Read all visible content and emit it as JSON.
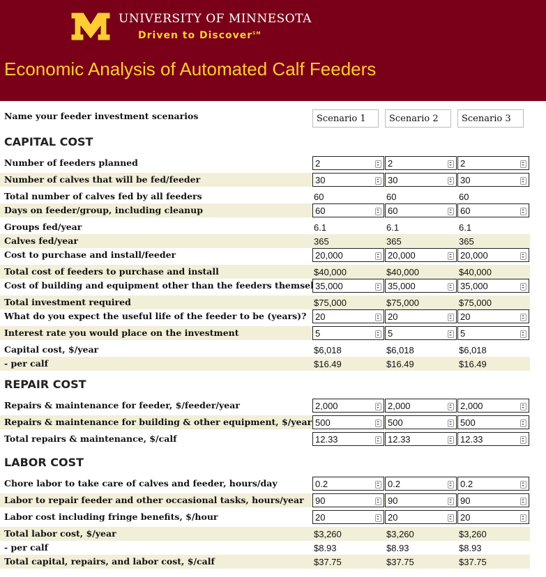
{
  "header": {
    "university": "UNIVERSITY OF MINNESOTA",
    "tagline": "Driven to Discover",
    "tagline_mark": "SM",
    "title": "Economic Analysis of Automated Calf Feeders"
  },
  "scenarios": {
    "label": "Name your feeder investment scenarios",
    "names": [
      "Scenario 1",
      "Scenario 2",
      "Scenario 3"
    ]
  },
  "capital": {
    "heading": "CAPITAL COST",
    "rows": [
      {
        "label": "Number of feeders planned",
        "type": "input",
        "values": [
          "2",
          "2",
          "2"
        ]
      },
      {
        "label": "Number of calves that will be fed/feeder",
        "type": "input",
        "values": [
          "30",
          "30",
          "30"
        ]
      },
      {
        "label": "Total number of calves fed by all feeders",
        "type": "output",
        "values": [
          "60",
          "60",
          "60"
        ]
      },
      {
        "label": "Days on feeder/group, including cleanup",
        "type": "input",
        "values": [
          "60",
          "60",
          "60"
        ]
      },
      {
        "label": "Groups fed/year",
        "type": "output",
        "values": [
          "6.1",
          "6.1",
          "6.1"
        ]
      },
      {
        "label": "Calves fed/year",
        "type": "output",
        "values": [
          "365",
          "365",
          "365"
        ]
      },
      {
        "label": "Cost to purchase and install/feeder",
        "type": "input",
        "values": [
          "20,000",
          "20,000",
          "20,000"
        ]
      },
      {
        "label": "Total cost of feeders to purchase and install",
        "type": "output",
        "values": [
          "$40,000",
          "$40,000",
          "$40,000"
        ]
      },
      {
        "label": "Cost of building and equipment other than the feeders themselves",
        "type": "input",
        "values": [
          "35,000",
          "35,000",
          "35,000"
        ]
      },
      {
        "label": "Total investment required",
        "type": "output",
        "values": [
          "$75,000",
          "$75,000",
          "$75,000"
        ]
      },
      {
        "label": "What do you expect the useful life of the feeder to be (years)?",
        "type": "input",
        "values": [
          "20",
          "20",
          "20"
        ]
      },
      {
        "label": "Interest rate you would place on the investment",
        "type": "input",
        "values": [
          "5",
          "5",
          "5"
        ]
      },
      {
        "label": "Capital cost, $/year",
        "type": "output",
        "values": [
          "$6,018",
          "$6,018",
          "$6,018"
        ]
      },
      {
        "label": "- per calf",
        "type": "output",
        "values": [
          "$16.49",
          "$16.49",
          "$16.49"
        ]
      }
    ]
  },
  "repair": {
    "heading": "REPAIR COST",
    "rows": [
      {
        "label": "Repairs & maintenance for feeder, $/feeder/year",
        "type": "input",
        "values": [
          "2,000",
          "2,000",
          "2,000"
        ]
      },
      {
        "label": "Repairs & maintenance for building & other equipment, $/year",
        "type": "input",
        "values": [
          "500",
          "500",
          "500"
        ]
      },
      {
        "label": "Total repairs & maintenance, $/calf",
        "type": "input",
        "values": [
          "12.33",
          "12.33",
          "12.33"
        ]
      }
    ]
  },
  "labor": {
    "heading": "LABOR COST",
    "rows": [
      {
        "label": "Chore labor to take care of calves and feeder, hours/day",
        "type": "input",
        "values": [
          "0.2",
          "0.2",
          "0.2"
        ]
      },
      {
        "label": "Labor to repair feeder and other occasional tasks, hours/year",
        "type": "input",
        "values": [
          "90",
          "90",
          "90"
        ]
      },
      {
        "label": "Labor cost including fringe benefits, $/hour",
        "type": "input",
        "values": [
          "20",
          "20",
          "20"
        ]
      },
      {
        "label": "Total labor cost, $/year",
        "type": "output",
        "values": [
          "$3,260",
          "$3,260",
          "$3,260"
        ]
      },
      {
        "label": "- per calf",
        "type": "output",
        "values": [
          "$8.93",
          "$8.93",
          "$8.93"
        ]
      },
      {
        "label": "Total capital, repairs, and labor cost, $/calf",
        "type": "output",
        "values": [
          "$37.75",
          "$37.75",
          "$37.75"
        ]
      }
    ]
  },
  "colors": {
    "maroon": "#7a0019",
    "gold": "#ffcc33",
    "row_shade": "#f1efd8"
  }
}
